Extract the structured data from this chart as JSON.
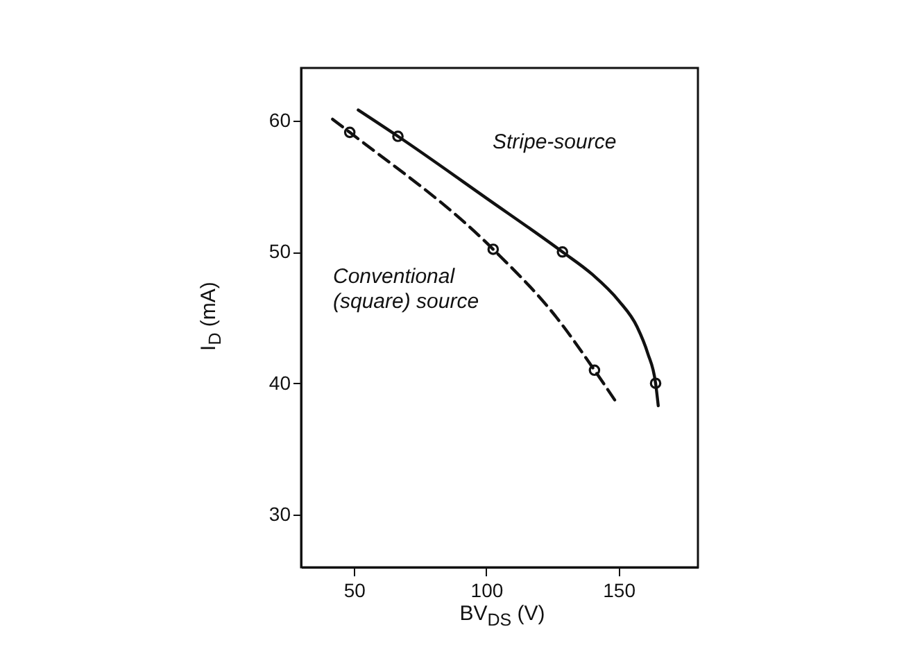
{
  "chart_data": {
    "type": "line",
    "xlabel": "BV$_{DS}$ (V)",
    "ylabel": "I$_{D}$ (mA)",
    "xlim": [
      30,
      180
    ],
    "ylim": [
      26,
      64
    ],
    "xticks": [
      50,
      100,
      150
    ],
    "yticks": [
      30,
      40,
      50,
      60
    ],
    "grid": false,
    "series": [
      {
        "name": "Stripe-source",
        "color": "#111111",
        "line_style": "solid",
        "marker": "none",
        "x": [
          51.6,
          66.6,
          100,
          128.8,
          140,
          150,
          157,
          161,
          164,
          165
        ],
        "values": [
          60.8,
          58.8,
          54.1,
          50,
          48.3,
          46.3,
          44.3,
          42.3,
          40,
          38.3
        ]
      },
      {
        "name": "Conventional (square) source",
        "color": "#111111",
        "line_style": "dashed",
        "marker": "none",
        "x": [
          41.9,
          48.4,
          102.6,
          126.6,
          140.9,
          150
        ],
        "values": [
          60.1,
          59.1,
          50.2,
          45,
          41,
          38.3
        ]
      },
      {
        "type": "scatter",
        "color": "#111111",
        "marker": "circle",
        "x": [
          66.6,
          128.8,
          164
        ],
        "values": [
          58.8,
          50,
          40
        ]
      },
      {
        "type": "scatter",
        "color": "#111111",
        "marker": "circle",
        "x": [
          48.4,
          102.6,
          140.9
        ],
        "values": [
          59.1,
          50.2,
          41
        ]
      }
    ]
  }
}
